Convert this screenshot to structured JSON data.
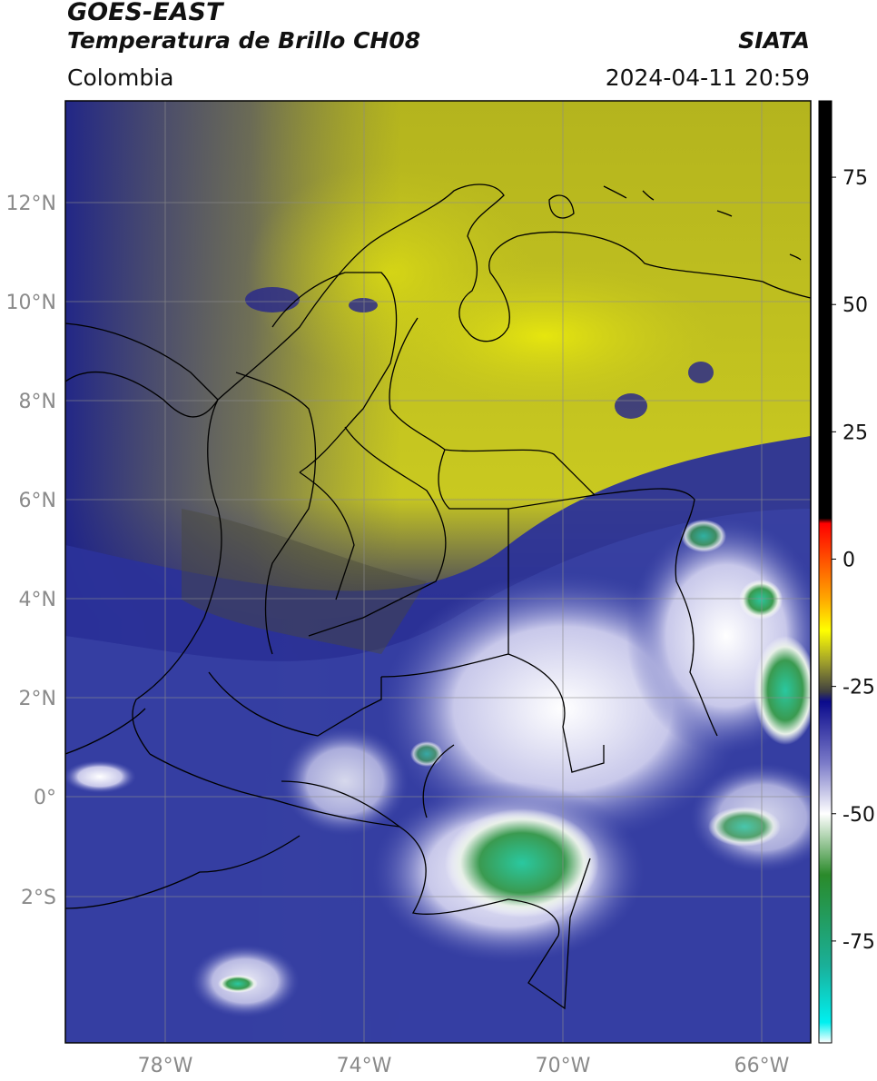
{
  "header": {
    "satellite": "GOES-EAST",
    "product": "Temperatura de Brillo CH08",
    "region": "Colombia",
    "source": "SIATA",
    "datetime": "2024-04-11 20:59"
  },
  "axes": {
    "lat_labels": [
      "12°N",
      "10°N",
      "8°N",
      "6°N",
      "4°N",
      "2°N",
      "0°",
      "2°S"
    ],
    "lon_labels": [
      "78°W",
      "74°W",
      "70°W",
      "66°W"
    ]
  },
  "colorbar": {
    "ticks": [
      "75",
      "50",
      "25",
      "0",
      "-25",
      "-50",
      "-75"
    ],
    "range": [
      -95,
      90
    ],
    "stops": [
      {
        "value": 90,
        "color": "#000000"
      },
      {
        "value": 8,
        "color": "#000000"
      },
      {
        "value": 7,
        "color": "#ff0000"
      },
      {
        "value": -8,
        "color": "#ffaa00"
      },
      {
        "value": -14,
        "color": "#ffff00"
      },
      {
        "value": -20,
        "color": "#a3a32a"
      },
      {
        "value": -26,
        "color": "#404040"
      },
      {
        "value": -28,
        "color": "#0a0a8c"
      },
      {
        "value": -40,
        "color": "#7a7ac8"
      },
      {
        "value": -50,
        "color": "#ffffff"
      },
      {
        "value": -62,
        "color": "#2a8a2a"
      },
      {
        "value": -80,
        "color": "#1ab09a"
      },
      {
        "value": -91,
        "color": "#00f0f0"
      },
      {
        "value": -95,
        "color": "#ffffff"
      }
    ]
  },
  "colors": {
    "cold_cloud": "#1a1f8c",
    "warm_dry": "#c8c81e",
    "border": "#000000",
    "grid": "#8c8c8c"
  }
}
